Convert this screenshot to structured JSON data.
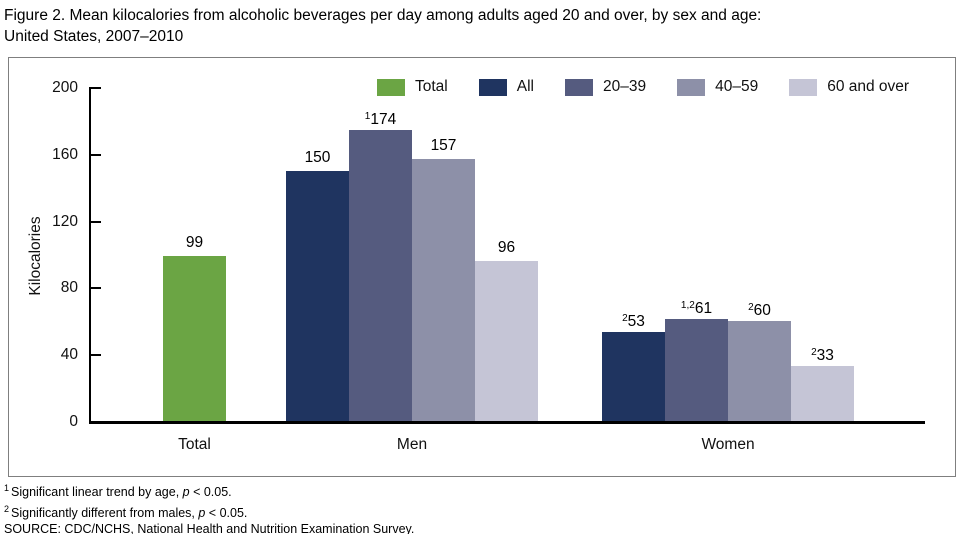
{
  "title": {
    "line1": "Figure 2. Mean kilocalories from alcoholic beverages per day among adults aged 20 and over, by sex and age:",
    "line2": "United States, 2007–2010"
  },
  "chart_data": {
    "type": "bar",
    "title": "Figure 2. Mean kilocalories from alcoholic beverages per day among adults aged 20 and over, by sex and age: United States, 2007–2010",
    "xlabel": "",
    "ylabel": "Kilocalories",
    "ylim": [
      0,
      200
    ],
    "yticks": [
      0,
      40,
      80,
      120,
      160,
      200
    ],
    "grid": "off",
    "legend_position": "top",
    "legend": [
      {
        "label": "Total",
        "color": "#6BA544"
      },
      {
        "label": "All",
        "color": "#1F3460"
      },
      {
        "label": "20–39",
        "color": "#555B7F"
      },
      {
        "label": "40–59",
        "color": "#8D90A8"
      },
      {
        "label": "60 and over",
        "color": "#C5C5D6"
      }
    ],
    "groups": [
      {
        "label": "Total",
        "bars": [
          {
            "series": "Total",
            "value": 99,
            "sup": ""
          }
        ]
      },
      {
        "label": "Men",
        "bars": [
          {
            "series": "All",
            "value": 150,
            "sup": ""
          },
          {
            "series": "20–39",
            "value": 174,
            "sup": "1"
          },
          {
            "series": "40–59",
            "value": 157,
            "sup": ""
          },
          {
            "series": "60 and over",
            "value": 96,
            "sup": ""
          }
        ]
      },
      {
        "label": "Women",
        "bars": [
          {
            "series": "All",
            "value": 53,
            "sup": "2"
          },
          {
            "series": "20–39",
            "value": 61,
            "sup": "1,2"
          },
          {
            "series": "40–59",
            "value": 60,
            "sup": "2"
          },
          {
            "series": "60 and over",
            "value": 33,
            "sup": "2"
          }
        ]
      }
    ]
  },
  "footnotes": [
    {
      "sup": "1",
      "text_before_p": "Significant linear trend by age, ",
      "p": "p",
      "text_after_p": " < 0.05."
    },
    {
      "sup": "2",
      "text_before_p": "Significantly different from males, ",
      "p": "p",
      "text_after_p": " < 0.05."
    },
    {
      "sup": "",
      "text_before_p": "SOURCE: CDC/NCHS, National Health and Nutrition Examination Survey.",
      "p": "",
      "text_after_p": ""
    }
  ]
}
